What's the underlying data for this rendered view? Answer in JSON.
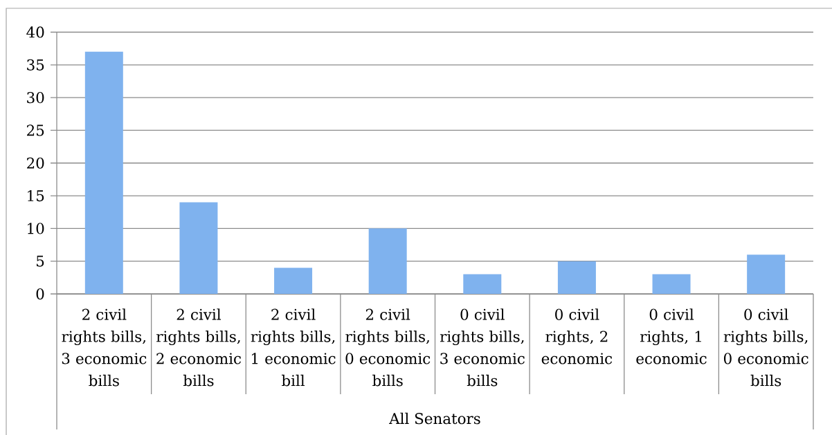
{
  "chart_data": {
    "type": "bar",
    "categories": [
      "2 civil rights bills, 3 economic bills",
      "2 civil rights bills, 2 economic bills",
      "2 civil rights bills, 1 economic bill",
      "2 civil rights bills, 0 economic bills",
      "0 civil rights bills, 3 economic bills",
      "0 civil rights, 2 economic",
      "0 civil rights, 1 economic",
      "0 civil rights bills, 0 economic bills"
    ],
    "values": [
      37,
      14,
      4,
      10,
      3,
      5,
      3,
      6
    ],
    "color": "#7fb2ee",
    "xlabel": "All Senators",
    "ylim": [
      0,
      40
    ],
    "yticks": [
      0,
      5,
      10,
      15,
      20,
      25,
      30,
      35,
      40
    ],
    "grid": "y"
  }
}
